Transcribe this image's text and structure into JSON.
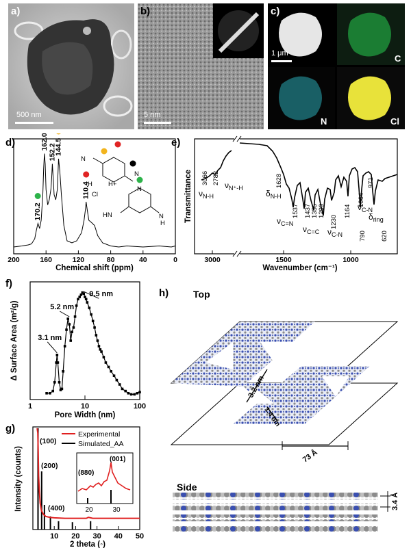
{
  "panels": {
    "a": {
      "letter": "a)",
      "scale_bar": "500 nm"
    },
    "b": {
      "letter": "b)",
      "scale_bar": "5 nm"
    },
    "c": {
      "letter": "c)",
      "scale_bar": "1 μm",
      "maps": [
        "C",
        "N",
        "Cl"
      ]
    },
    "d": {
      "letter": "d)"
    },
    "e": {
      "letter": "e)"
    },
    "f": {
      "letter": "f)"
    },
    "g": {
      "letter": "g)"
    },
    "h": {
      "letter": "h)",
      "top_label": "Top",
      "side_label": "Side",
      "dim_pore_large": "3.2 nm",
      "dim_pore_small": "1.4 nm",
      "dim_cell": "73 Å",
      "dim_interlayer": "3.4 Å"
    }
  },
  "chart_data": [
    {
      "id": "d",
      "type": "line",
      "xlabel": "Chemical shift (ppm)",
      "ylabel": "",
      "xlim": [
        200,
        0
      ],
      "xticks": [
        200,
        160,
        120,
        80,
        40,
        0
      ],
      "x": [
        200,
        190,
        182,
        178,
        174,
        172,
        170,
        168,
        166,
        164,
        163,
        162,
        161,
        160,
        158,
        156,
        154,
        153,
        152.2,
        151,
        150,
        148,
        146,
        145,
        144.5,
        143,
        141,
        138,
        134,
        128,
        122,
        116,
        113,
        111,
        110.4,
        109,
        107,
        104,
        100,
        96,
        90,
        80,
        70,
        60,
        40,
        20,
        5,
        0
      ],
      "y": [
        0.04,
        0.05,
        0.06,
        0.07,
        0.12,
        0.2,
        0.27,
        0.22,
        0.3,
        0.55,
        0.8,
        0.95,
        0.85,
        0.6,
        0.45,
        0.5,
        0.6,
        0.72,
        0.85,
        0.7,
        0.55,
        0.5,
        0.6,
        0.8,
        0.9,
        0.78,
        0.55,
        0.25,
        0.1,
        0.08,
        0.1,
        0.18,
        0.3,
        0.42,
        0.48,
        0.4,
        0.3,
        0.28,
        0.25,
        0.15,
        0.08,
        0.05,
        0.04,
        0.05,
        0.04,
        0.05,
        0.04,
        0.05
      ],
      "peak_labels": [
        {
          "text": "170.2",
          "x": 170.2,
          "marker": "green"
        },
        {
          "text": "162.0",
          "x": 162.0,
          "marker": "black"
        },
        {
          "text": "152.2",
          "x": 152.2,
          "marker": "none"
        },
        {
          "text": "144.5",
          "x": 144.5,
          "marker": "yellow"
        },
        {
          "text": "110.4",
          "x": 110.4,
          "marker": "red"
        }
      ],
      "structure_labels": {
        "nh1": "N",
        "h1": "H",
        "nh2": "N",
        "hplus": "H+",
        "cl": "Cl",
        "n_ring": "N",
        "hn": "HN",
        "nh3": "N",
        "h2": "H"
      },
      "colors": {
        "green": "#2db34a",
        "black": "#000000",
        "yellow": "#f2b41d",
        "red": "#e02424"
      }
    },
    {
      "id": "e",
      "type": "line",
      "xlabel": "Wavenumber (cm⁻¹)",
      "ylabel": "Transmittance",
      "xticks": [
        3000,
        1500,
        1000
      ],
      "annotations": [
        {
          "text": "3066",
          "x": 3066
        },
        {
          "text": "2782",
          "x": 2782
        },
        {
          "text": "1628",
          "x": 1628
        },
        {
          "text": "1537",
          "x": 1537
        },
        {
          "text": "1437",
          "x": 1437
        },
        {
          "text": "1355",
          "x": 1355
        },
        {
          "text": "1299",
          "x": 1299
        },
        {
          "text": "1230",
          "x": 1230
        },
        {
          "text": "1164",
          "x": 1164
        },
        {
          "text": "1064",
          "x": 1064
        },
        {
          "text": "971",
          "x": 971
        },
        {
          "text": "790",
          "x": 790
        },
        {
          "text": "620",
          "x": 620
        }
      ],
      "vib_labels": {
        "nu": "ν",
        "delta": "δ",
        "nh": "N-H",
        "nplus": "N⁺-H",
        "dnh": "N-H",
        "cn_double": "C=N",
        "cc_double": "C=C",
        "cn": "C-N",
        "cn2": "C-N",
        "ring": "ring"
      }
    },
    {
      "id": "f",
      "type": "line",
      "xlabel": "Pore Width (nm)",
      "ylabel": "Δ Surface Area (m²/g)",
      "xscale": "log",
      "xlim": [
        1,
        100
      ],
      "xticks": [
        1,
        10,
        100
      ],
      "ylim": [
        0,
        1
      ],
      "x": [
        2.0,
        2.3,
        2.6,
        2.8,
        3.0,
        3.1,
        3.2,
        3.4,
        3.6,
        3.8,
        4.0,
        4.3,
        4.6,
        4.9,
        5.2,
        5.5,
        5.8,
        6.2,
        6.6,
        7.0,
        7.5,
        8.0,
        8.5,
        9.0,
        9.5,
        10,
        10.5,
        11,
        12,
        13,
        14,
        15,
        16,
        17,
        18,
        19,
        20,
        22,
        24,
        27,
        30,
        34,
        38,
        43,
        48,
        55,
        62,
        70,
        80,
        90,
        100
      ],
      "y": [
        0.02,
        0.02,
        0.04,
        0.12,
        0.3,
        0.37,
        0.3,
        0.12,
        0.05,
        0.06,
        0.22,
        0.45,
        0.6,
        0.7,
        0.65,
        0.5,
        0.58,
        0.62,
        0.72,
        0.82,
        0.88,
        0.9,
        0.92,
        0.94,
        0.93,
        0.9,
        0.88,
        0.85,
        0.8,
        0.74,
        0.68,
        0.62,
        0.55,
        0.5,
        0.45,
        0.42,
        0.4,
        0.35,
        0.3,
        0.26,
        0.22,
        0.18,
        0.14,
        0.1,
        0.06,
        0.04,
        0.02,
        0.01,
        0.01,
        0.02,
        0.03
      ],
      "annotations": [
        {
          "text": "3.1 nm",
          "x": 3.1,
          "y": 0.37
        },
        {
          "text": "5.2 nm",
          "x": 5.2,
          "y": 0.7
        },
        {
          "text": "9.5 nm",
          "x": 9.5,
          "y": 0.93
        }
      ]
    },
    {
      "id": "g",
      "type": "line",
      "xlabel": "2 theta (◦)",
      "ylabel": "Intensity (counts)",
      "xlim": [
        0,
        50
      ],
      "xticks": [
        10,
        20,
        30,
        40,
        50
      ],
      "ylim": [
        0,
        1
      ],
      "series": [
        {
          "name": "Experimental",
          "color": "#e02020",
          "x": [
            2.0,
            2.3,
            2.5,
            2.7,
            3.0,
            3.4,
            4.0,
            5,
            6,
            8,
            10,
            15,
            20,
            25,
            26,
            27,
            28,
            30,
            35,
            40,
            45,
            50
          ],
          "y": [
            1.0,
            0.95,
            0.75,
            0.5,
            0.35,
            0.22,
            0.14,
            0.1,
            0.08,
            0.07,
            0.065,
            0.06,
            0.06,
            0.06,
            0.07,
            0.065,
            0.06,
            0.06,
            0.06,
            0.06,
            0.06,
            0.06
          ]
        },
        {
          "name": "Simulated_AA",
          "color": "#000000",
          "sticks": [
            [
              2.4,
              1.0
            ],
            [
              4.1,
              0.55
            ],
            [
              5.4,
              0.2
            ],
            [
              8.2,
              0.08
            ],
            [
              12,
              0.03
            ],
            [
              18.5,
              0.02
            ],
            [
              27,
              0.03
            ]
          ]
        }
      ],
      "peak_labels": [
        "(100)",
        "(200)",
        "(400)"
      ],
      "inset": {
        "xticks": [
          20,
          30
        ],
        "labels": [
          "(880)",
          "(001)"
        ]
      }
    }
  ]
}
